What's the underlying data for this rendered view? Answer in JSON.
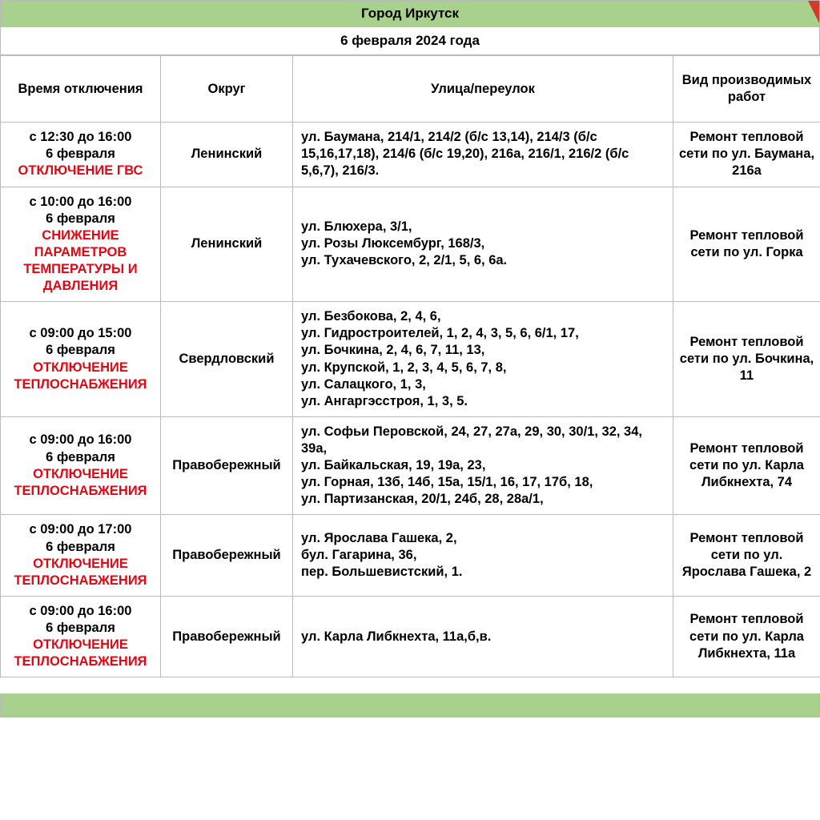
{
  "header": {
    "city": "Город Иркутск",
    "date": "6 февраля 2024 года"
  },
  "table": {
    "columns": [
      "Время отключения",
      "Округ",
      "Улица/переулок",
      "Вид производимых работ"
    ],
    "rows": [
      {
        "time_black": "с 12:30 до 16:00\n6 февраля",
        "time_red": "ОТКЛЮЧЕНИЕ ГВС",
        "district": "Ленинский",
        "streets": "ул. Баумана, 214/1, 214/2 (б/с 13,14), 214/3 (б/с 15,16,17,18), 214/6 (б/с 19,20), 216а, 216/1, 216/2 (б/с 5,6,7), 216/3.",
        "work": "Ремонт тепловой сети по ул. Баумана, 216а"
      },
      {
        "time_black": "с 10:00 до 16:00\n6 февраля",
        "time_red": "СНИЖЕНИЕ ПАРАМЕТРОВ ТЕМПЕРАТУРЫ И ДАВЛЕНИЯ",
        "district": "Ленинский",
        "streets": "ул. Блюхера, 3/1,\nул. Розы Люксембург, 168/3,\nул. Тухачевского, 2, 2/1, 5, 6, 6а.",
        "work": "Ремонт тепловой сети по ул. Горка"
      },
      {
        "time_black": "с 09:00 до 15:00\n6 февраля",
        "time_red": "ОТКЛЮЧЕНИЕ ТЕПЛОСНАБЖЕНИЯ",
        "district": "Свердловский",
        "streets": "ул. Безбокова, 2, 4, 6,\nул. Гидростроителей, 1, 2, 4, 3, 5, 6, 6/1, 17,\nул. Бочкина, 2, 4, 6, 7, 11, 13,\nул. Крупской, 1, 2, 3, 4, 5, 6, 7, 8,\nул. Салацкого, 1, 3,\nул. Ангаргэсстроя, 1, 3, 5.",
        "work": "Ремонт тепловой сети по ул. Бочкина, 11"
      },
      {
        "time_black": "с 09:00 до 16:00\n6 февраля",
        "time_red": "ОТКЛЮЧЕНИЕ ТЕПЛОСНАБЖЕНИЯ",
        "district": "Правобережный",
        "streets": "ул. Софьи Перовской, 24, 27, 27а, 29, 30, 30/1, 32, 34, 39а,\nул. Байкальская, 19, 19а, 23,\nул. Горная, 13б, 14б, 15а, 15/1, 16, 17, 17б, 18,\nул. Партизанская, 20/1, 24б, 28, 28а/1,",
        "work": "Ремонт тепловой сети по ул. Карла Либкнехта, 74"
      },
      {
        "time_black": "с 09:00 до 17:00\n6 февраля",
        "time_red": "ОТКЛЮЧЕНИЕ ТЕПЛОСНАБЖЕНИЯ",
        "district": "Правобережный",
        "streets": "ул. Ярослава Гашека, 2,\nбул. Гагарина, 36,\nпер. Большевистский, 1.",
        "work": "Ремонт тепловой сети по ул. Ярослава Гашека, 2"
      },
      {
        "time_black": "с 09:00 до 16:00\n6 февраля",
        "time_red": "ОТКЛЮЧЕНИЕ ТЕПЛОСНАБЖЕНИЯ",
        "district": "Правобережный",
        "streets": "ул. Карла Либкнехта, 11а,б,в.",
        "work": "Ремонт тепловой сети по ул. Карла Либкнехта, 11а"
      }
    ]
  },
  "colors": {
    "header_bg": "#a8d18d",
    "border": "#bbbbbb",
    "alert_red": "#e30613",
    "corner_red": "#d43a2a",
    "text": "#000000",
    "bg": "#ffffff"
  }
}
